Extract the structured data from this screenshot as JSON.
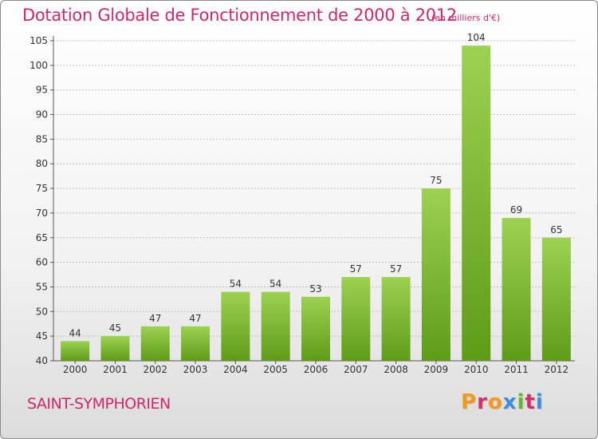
{
  "header": {
    "title": "Dotation Globale de Fonctionnement de 2000 à 2012",
    "subtitle": "(en milliers d'€)"
  },
  "footer": {
    "commune": "SAINT-SYMPHORIEN",
    "brand": "Proxiti",
    "brand_colors": [
      "#f39a1d",
      "#d82f6a",
      "#f39a1d",
      "#3a8fd6",
      "#6ab42d",
      "#d82f6a",
      "#3a8fd6"
    ]
  },
  "colors": {
    "bar_top": "#9dd152",
    "bar_bottom": "#5e9c18",
    "grid": "#bdbdbd",
    "accent": "#d0276c"
  },
  "chart_data": {
    "type": "bar",
    "categories": [
      "2000",
      "2001",
      "2002",
      "2003",
      "2004",
      "2005",
      "2006",
      "2007",
      "2008",
      "2009",
      "2010",
      "2011",
      "2012"
    ],
    "values": [
      44,
      45,
      47,
      47,
      54,
      54,
      53,
      57,
      57,
      75,
      104,
      69,
      65
    ],
    "data_labels": [
      "44",
      "45",
      "47",
      "47",
      "54",
      "54",
      "53",
      "57",
      "57",
      "75",
      "104",
      "69",
      "65"
    ],
    "yticks": [
      "40",
      "45",
      "50",
      "55",
      "60",
      "65",
      "70",
      "75",
      "80",
      "85",
      "90",
      "95",
      "100",
      "105"
    ],
    "ylim": [
      40,
      105
    ],
    "title": "Dotation Globale de Fonctionnement de 2000 à 2012",
    "xlabel": "",
    "ylabel": "",
    "grid": true
  }
}
